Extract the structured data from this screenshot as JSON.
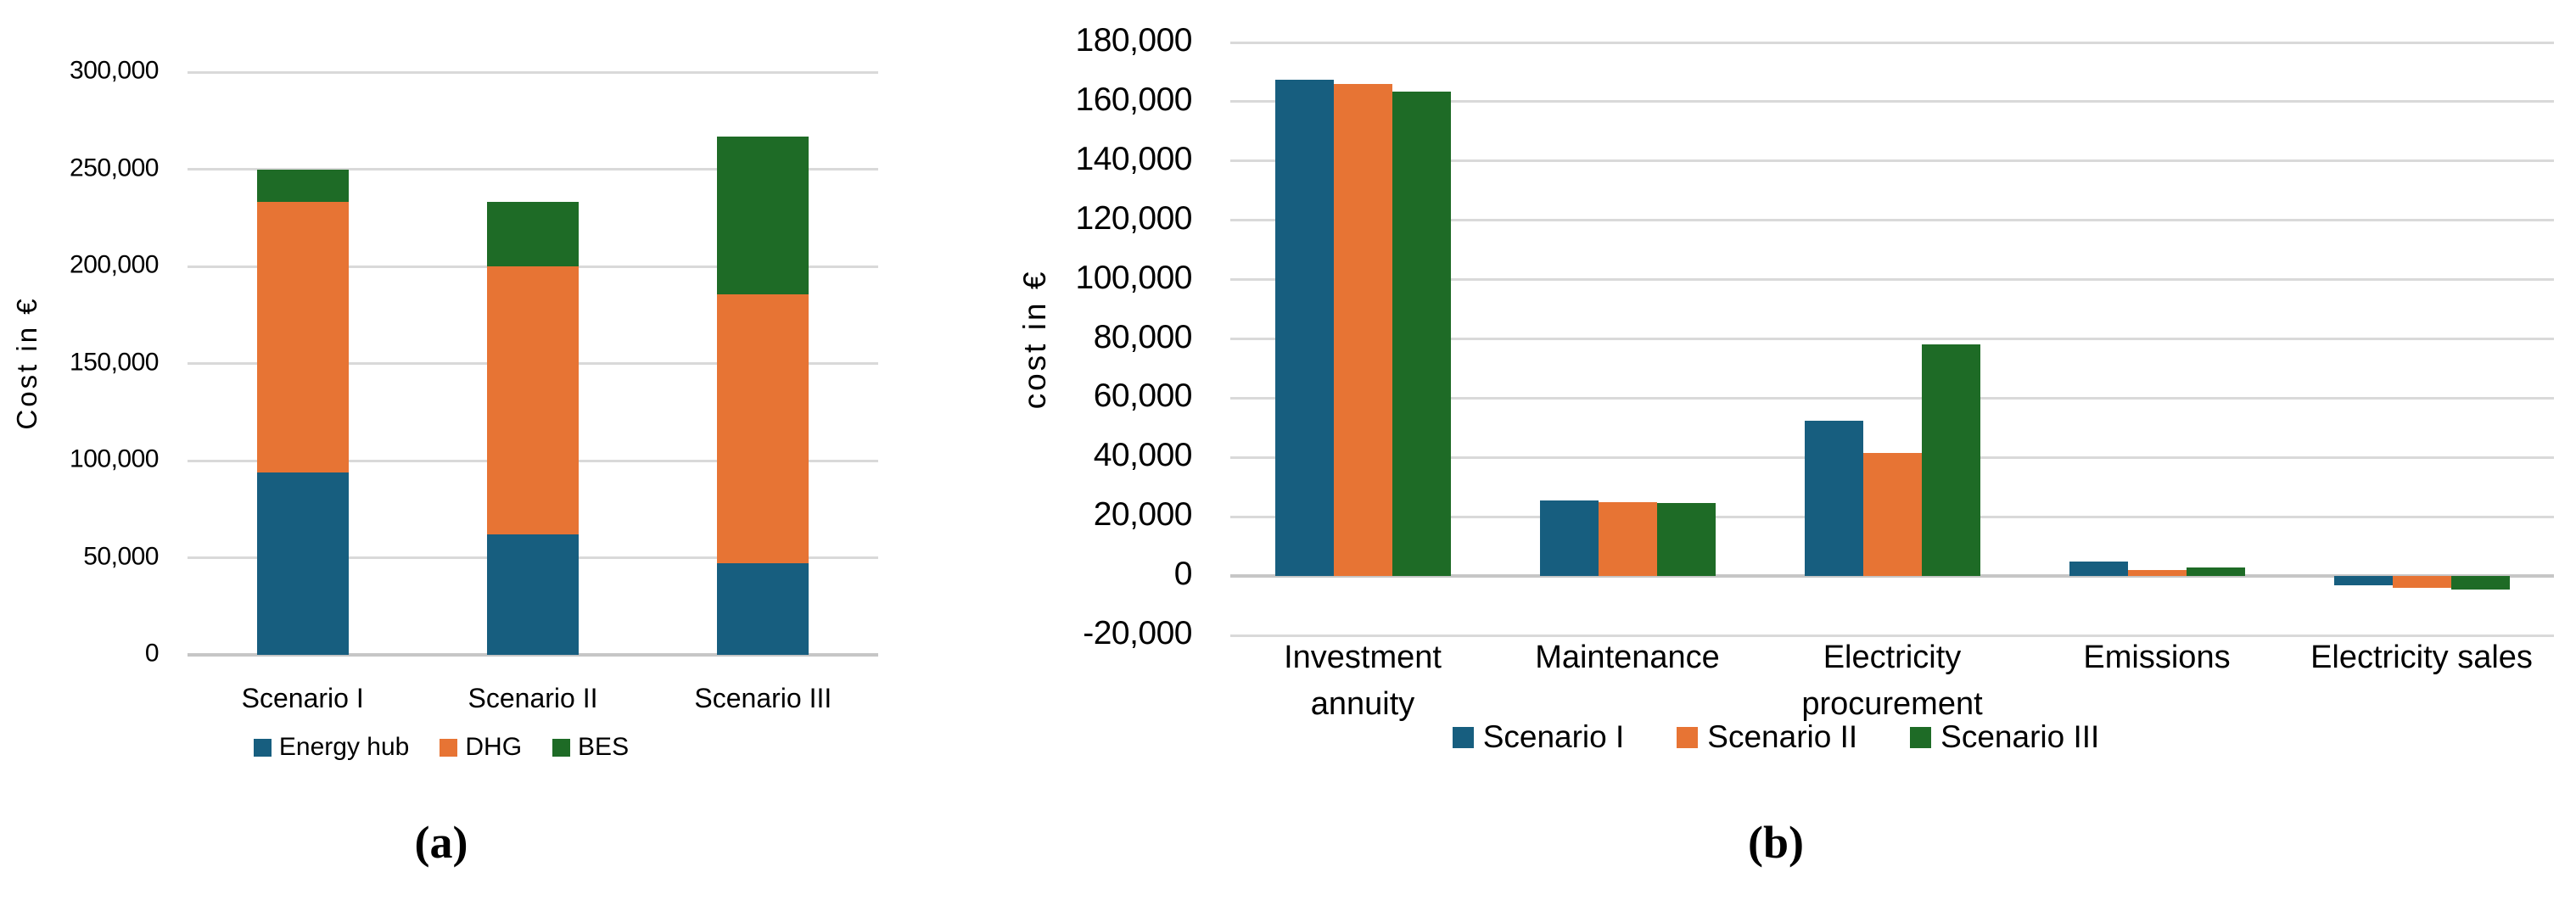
{
  "figure": {
    "caption_a": "(a)",
    "caption_b": "(b)"
  },
  "colors": {
    "scenario1_blue": "#175E7F",
    "scenario2_orange": "#E77434",
    "scenario3_green": "#1E6B26",
    "gridline": "#D9D9D9",
    "zero_axis": "#C6C6C6",
    "text": "#000000",
    "background": "#FFFFFF"
  },
  "chart_data": [
    {
      "id": "a",
      "type": "bar",
      "subtype": "stacked",
      "title": "",
      "xlabel": "",
      "ylabel": "Cost in €",
      "categories": [
        "Scenario I",
        "Scenario II",
        "Scenario III"
      ],
      "series": [
        {
          "name": "Energy hub",
          "color": "#175E7F",
          "values": [
            94000,
            62000,
            47000
          ]
        },
        {
          "name": "DHG",
          "color": "#E77434",
          "values": [
            139000,
            138000,
            138500
          ]
        },
        {
          "name": "BES",
          "color": "#1E6B26",
          "values": [
            17000,
            33000,
            81500
          ]
        }
      ],
      "stack_totals": [
        250000,
        233000,
        267000
      ],
      "ylim": [
        0,
        300000
      ],
      "ytick_step": 50000,
      "ytick_labels": [
        "0",
        "50,000",
        "100,000",
        "150,000",
        "200,000",
        "250,000",
        "300,000"
      ],
      "grid": true,
      "legend_position": "bottom"
    },
    {
      "id": "b",
      "type": "bar",
      "subtype": "grouped",
      "title": "",
      "xlabel": "",
      "ylabel": "cost in €",
      "categories": [
        "Investment\nannuity",
        "Maintenance",
        "Electricity\nprocurement",
        "Emissions",
        "Electricity sales"
      ],
      "series": [
        {
          "name": "Scenario I",
          "color": "#175E7F",
          "values": [
            167500,
            25500,
            52500,
            5000,
            -3000
          ]
        },
        {
          "name": "Scenario II",
          "color": "#E77434",
          "values": [
            166000,
            25000,
            41500,
            2000,
            -4000
          ]
        },
        {
          "name": "Scenario III",
          "color": "#1E6B26",
          "values": [
            163500,
            24500,
            78000,
            3000,
            -4500
          ]
        }
      ],
      "ylim": [
        -20000,
        180000
      ],
      "ytick_step": 20000,
      "ytick_labels": [
        "-20,000",
        "0",
        "20,000",
        "40,000",
        "60,000",
        "80,000",
        "100,000",
        "120,000",
        "140,000",
        "160,000",
        "180,000"
      ],
      "grid": true,
      "legend_position": "bottom"
    }
  ]
}
